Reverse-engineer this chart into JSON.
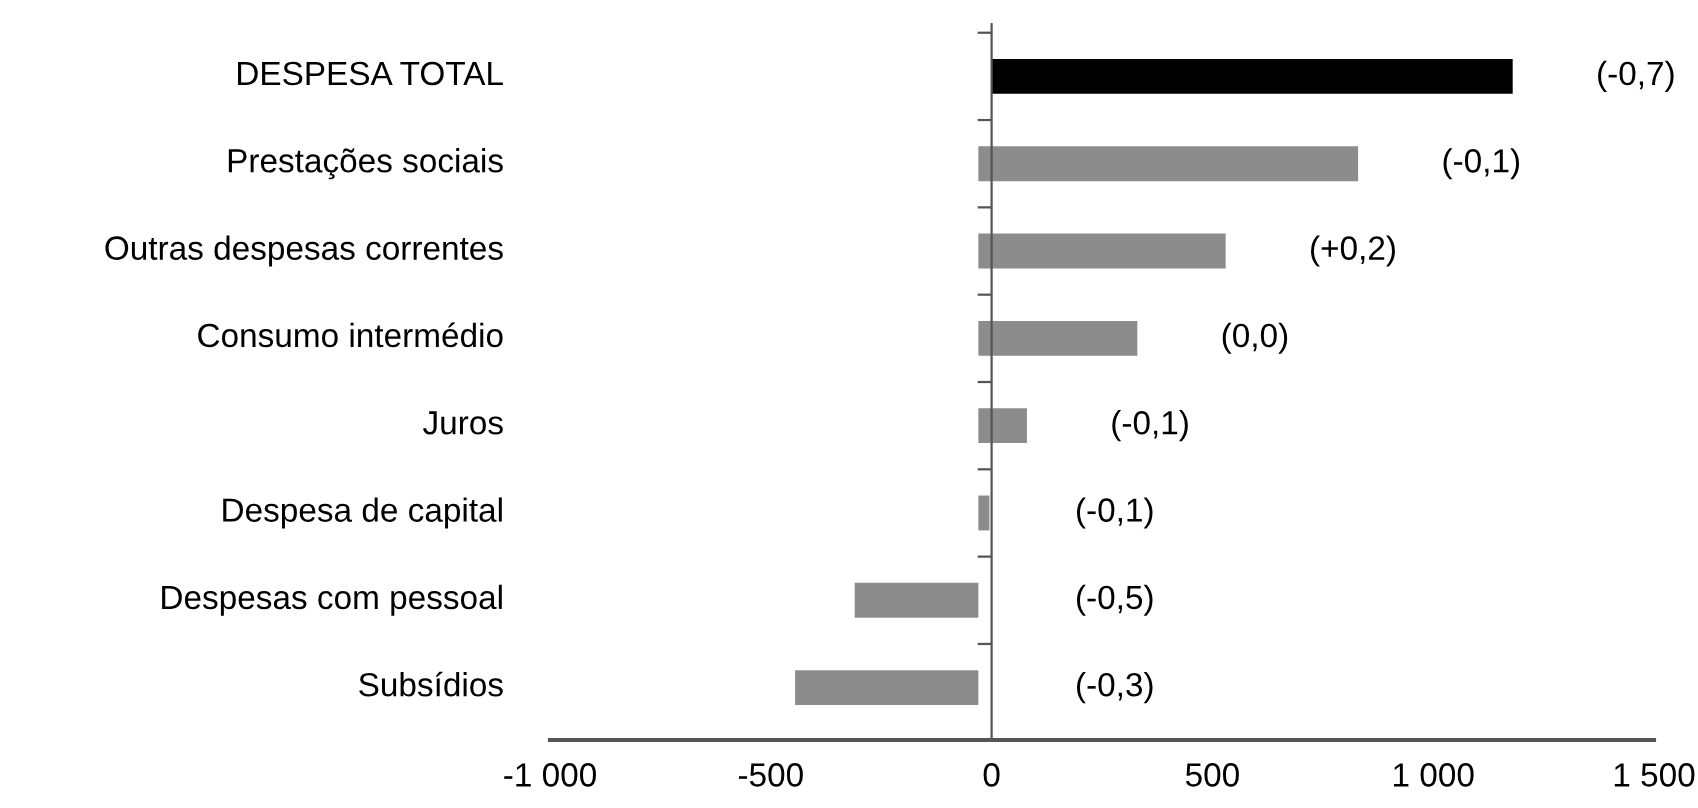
{
  "chart_data": {
    "type": "bar",
    "orientation": "horizontal",
    "categories": [
      "DESPESA TOTAL",
      "Prestações sociais",
      "Outras despesas correntes",
      "Consumo intermédio",
      "Juros",
      "Despesa de capital",
      "Despesas com pessoal",
      "Subsídios"
    ],
    "base": [
      0,
      -30,
      -30,
      -30,
      -30,
      -30,
      -30,
      -30
    ],
    "values": [
      1180,
      860,
      560,
      360,
      110,
      25,
      -280,
      -415
    ],
    "colors": [
      "#000000",
      "#8c8c8c",
      "#8c8c8c",
      "#8c8c8c",
      "#8c8c8c",
      "#8c8c8c",
      "#8c8c8c",
      "#8c8c8c"
    ],
    "xlim": [
      -1000,
      1500
    ],
    "xticks": [
      {
        "value": -1000,
        "label": "-1 000"
      },
      -500,
      0,
      500,
      {
        "value": 1000,
        "label": "1 000"
      },
      {
        "value": 1500,
        "label": "1 500"
      }
    ],
    "annotations": [
      "(-0,7)",
      "(-0,1)",
      "(+0,2)",
      "(0,0)",
      "(-0,1)",
      "(-0,1)",
      "(-0,5)",
      "(-0,3)"
    ]
  }
}
